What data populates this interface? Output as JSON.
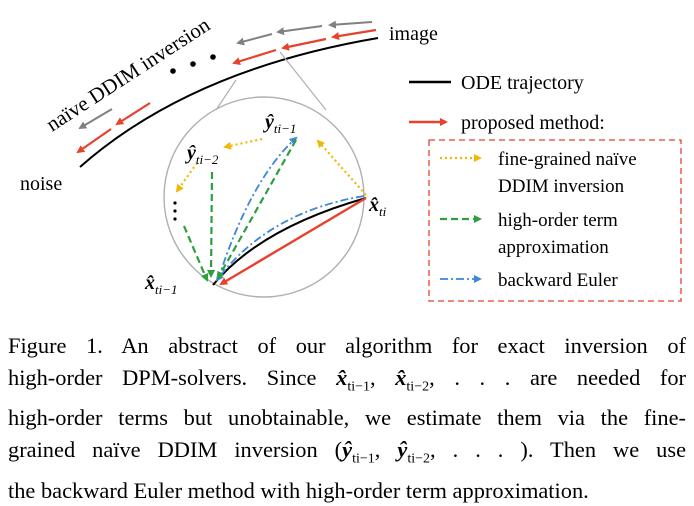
{
  "diagram": {
    "labels": {
      "image": "image",
      "noise": "noise",
      "naive_ddim": "naïve DDIM inversion"
    },
    "legend": {
      "ode_trajectory": "ODE trajectory",
      "proposed_method": "proposed method:",
      "fine_grained_line1": "fine-grained naïve",
      "fine_grained_line2": "DDIM inversion",
      "high_order_line1": "high-order term",
      "high_order_line2": "approximation",
      "backward_euler": "backward Euler"
    },
    "points": {
      "x_ti": "x̂",
      "x_ti_sub": "ti",
      "x_ti_minus_1": "x̂",
      "x_ti_minus_1_sub": "ti−1",
      "y_ti_minus_1": "ŷ",
      "y_ti_minus_1_sub": "ti−1",
      "y_ti_minus_2": "ŷ",
      "y_ti_minus_2_sub": "ti−2"
    },
    "colors": {
      "ode": "#000000",
      "proposed": "#e8412c",
      "naive": "#808080",
      "fine_grained": "#f2b705",
      "high_order": "#2e9e3e",
      "backward_euler": "#3c87d6",
      "legend_box": "#e8412c",
      "zoom_circle": "#b0b0b0"
    }
  },
  "caption": {
    "line1": "Figure 1.  An abstract of our algorithm for exact inversion of",
    "line2_a": "high-order DPM-solvers.  Since ",
    "line2_x1": "x̂",
    "line2_x1_sub": "ti−1",
    "line2_sep": ", ",
    "line2_x2": "x̂",
    "line2_x2_sub": "ti−2",
    "line2_b": ", . . .  are needed for",
    "line3": "high-order terms but unobtainable, we estimate them via the fine-",
    "line4_a": "grained naïve DDIM inversion (",
    "line4_y1": "ŷ",
    "line4_y1_sub": "ti−1",
    "line4_sep": ", ",
    "line4_y2": "ŷ",
    "line4_y2_sub": "ti−2",
    "line4_b": ", . . . ).  Then we use",
    "line5": "the backward Euler method with high-order term approximation."
  }
}
